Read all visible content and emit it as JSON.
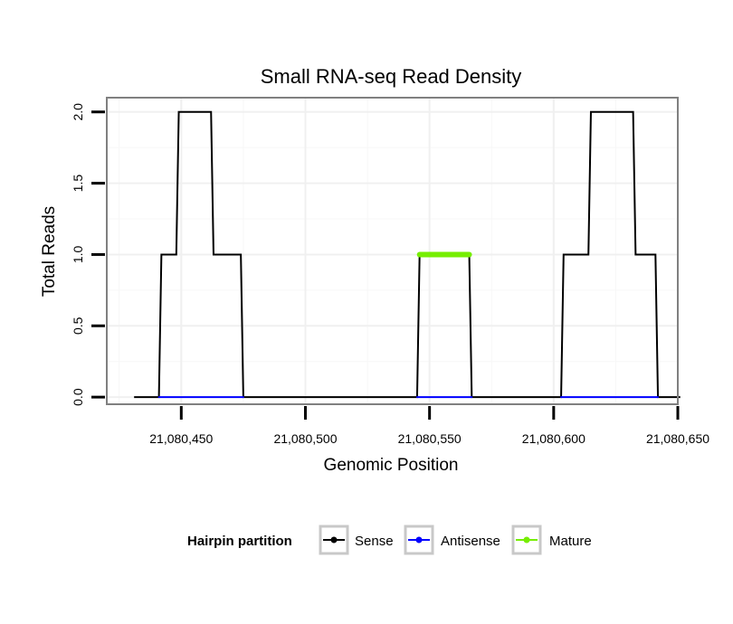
{
  "chart_data": {
    "type": "line",
    "title": "Small RNA-seq Read Density",
    "xlabel": "Genomic Position",
    "ylabel": "Total Reads",
    "xlim": [
      21080420,
      21080650
    ],
    "ylim": [
      -0.05,
      2.1
    ],
    "xticks": [
      21080450,
      21080500,
      21080550,
      21080600,
      21080650
    ],
    "xtick_labels": [
      "21,080,450",
      "21,080,500",
      "21,080,550",
      "21,080,600",
      "21,080,650"
    ],
    "yticks": [
      0,
      0.5,
      1,
      1.5,
      2
    ],
    "ytick_labels": [
      "0.0",
      "0.5",
      "1.0",
      "1.5",
      "2.0"
    ],
    "grid": true,
    "legend": {
      "title": "Hairpin partition",
      "position": "bottom",
      "entries": [
        {
          "label": "Sense",
          "color": "#000000"
        },
        {
          "label": "Antisense",
          "color": "#0000ff"
        },
        {
          "label": "Mature",
          "color": "#76ee00"
        }
      ]
    },
    "series": [
      {
        "name": "Sense",
        "color": "#000000",
        "points": [
          [
            21080431,
            0
          ],
          [
            21080441,
            0
          ],
          [
            21080442,
            1
          ],
          [
            21080448,
            1
          ],
          [
            21080449,
            2
          ],
          [
            21080462,
            2
          ],
          [
            21080463,
            1
          ],
          [
            21080474,
            1
          ],
          [
            21080475,
            0
          ],
          [
            21080545,
            0
          ],
          [
            21080546,
            1
          ],
          [
            21080566,
            1
          ],
          [
            21080567,
            0
          ],
          [
            21080603,
            0
          ],
          [
            21080604,
            1
          ],
          [
            21080614,
            1
          ],
          [
            21080615,
            2
          ],
          [
            21080632,
            2
          ],
          [
            21080633,
            1
          ],
          [
            21080641,
            1
          ],
          [
            21080642,
            0
          ],
          [
            21080651,
            0
          ]
        ]
      },
      {
        "name": "Antisense",
        "color": "#0000ff",
        "segments": [
          [
            [
              21080441,
              0
            ],
            [
              21080475,
              0
            ]
          ],
          [
            [
              21080545,
              0
            ],
            [
              21080567,
              0
            ]
          ],
          [
            [
              21080603,
              0
            ],
            [
              21080642,
              0
            ]
          ]
        ]
      },
      {
        "name": "Mature",
        "color": "#76ee00",
        "segments": [
          [
            [
              21080546,
              1
            ],
            [
              21080566,
              1
            ]
          ]
        ]
      }
    ]
  }
}
